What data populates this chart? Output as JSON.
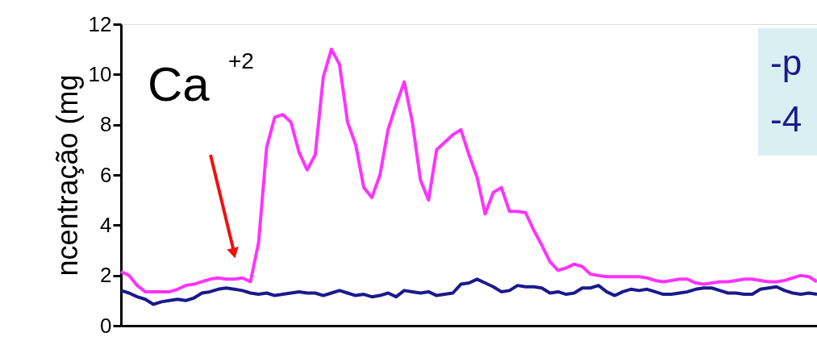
{
  "chart_data": {
    "type": "line",
    "ylabel": "ncentração (mg",
    "ylim": [
      0,
      12
    ],
    "yticks": [
      0,
      2,
      4,
      6,
      8,
      10,
      12
    ],
    "grid": false,
    "tick_labels": "y",
    "marker": "none",
    "line_style": "solid",
    "categories": [
      null,
      null,
      null,
      null,
      null,
      null,
      null,
      null,
      null,
      null,
      null,
      null,
      null,
      null,
      null,
      null,
      null,
      null,
      null,
      null,
      null,
      null,
      null,
      null,
      null,
      null,
      null,
      null,
      null,
      null,
      null,
      null,
      null,
      null,
      null,
      null,
      null,
      null,
      null,
      null,
      null,
      null,
      null,
      null,
      null,
      null,
      null,
      null,
      null,
      null,
      null,
      null,
      null,
      null,
      null,
      null,
      null,
      null,
      null,
      null,
      null,
      null,
      null,
      null,
      null,
      null,
      null,
      null,
      null,
      null,
      null,
      null,
      null,
      null,
      null,
      null,
      null,
      null,
      null,
      null,
      null,
      null,
      null,
      null,
      null,
      null,
      null
    ],
    "series": [
      {
        "color": "#ff33ff",
        "values": [
          2.15,
          2.0,
          1.6,
          1.35,
          1.35,
          1.35,
          1.35,
          1.45,
          1.6,
          1.65,
          1.75,
          1.85,
          1.9,
          1.85,
          1.85,
          1.9,
          1.75,
          3.3,
          7.1,
          8.3,
          8.4,
          8.1,
          6.9,
          6.2,
          6.8,
          9.9,
          11.0,
          10.4,
          8.1,
          7.2,
          5.5,
          5.1,
          6.0,
          7.8,
          8.8,
          9.7,
          8.1,
          5.8,
          5.0,
          7.0,
          7.3,
          7.6,
          7.8,
          6.8,
          5.9,
          4.45,
          5.3,
          5.5,
          4.55,
          4.55,
          4.5,
          3.8,
          3.2,
          2.55,
          2.2,
          2.3,
          2.45,
          2.35,
          2.05,
          2.0,
          1.95,
          1.95,
          1.95,
          1.95,
          1.95,
          1.9,
          1.8,
          1.75,
          1.8,
          1.85,
          1.85,
          1.7,
          1.65,
          1.7,
          1.75,
          1.75,
          1.8,
          1.85,
          1.85,
          1.8,
          1.75,
          1.75,
          1.8,
          1.9,
          2.0,
          1.95,
          1.75
        ]
      },
      {
        "color": "#1a1a8c",
        "values": [
          1.4,
          1.3,
          1.15,
          1.05,
          0.85,
          0.95,
          1.0,
          1.05,
          1.0,
          1.1,
          1.3,
          1.35,
          1.45,
          1.5,
          1.45,
          1.4,
          1.3,
          1.25,
          1.3,
          1.2,
          1.25,
          1.3,
          1.35,
          1.3,
          1.3,
          1.2,
          1.3,
          1.4,
          1.3,
          1.2,
          1.25,
          1.15,
          1.2,
          1.3,
          1.15,
          1.4,
          1.35,
          1.3,
          1.35,
          1.2,
          1.25,
          1.3,
          1.65,
          1.7,
          1.85,
          1.7,
          1.55,
          1.35,
          1.4,
          1.6,
          1.55,
          1.55,
          1.5,
          1.3,
          1.35,
          1.25,
          1.3,
          1.5,
          1.5,
          1.6,
          1.35,
          1.2,
          1.35,
          1.45,
          1.4,
          1.45,
          1.35,
          1.25,
          1.25,
          1.3,
          1.35,
          1.45,
          1.5,
          1.5,
          1.4,
          1.3,
          1.3,
          1.25,
          1.25,
          1.45,
          1.5,
          1.55,
          1.4,
          1.3,
          1.25,
          1.3,
          1.25
        ]
      }
    ],
    "annotations": [
      "Ca$^{+2}$",
      "-p",
      "-4"
    ]
  }
}
